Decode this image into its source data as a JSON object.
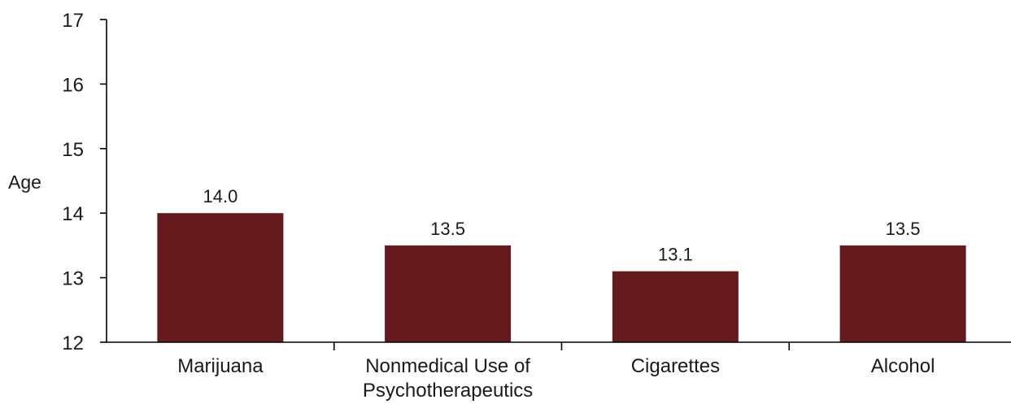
{
  "chart_data": {
    "type": "bar",
    "title": "",
    "xlabel": "",
    "ylabel": "Age",
    "ylim": [
      12,
      17
    ],
    "yticks": [
      12,
      13,
      14,
      15,
      16,
      17
    ],
    "grid": false,
    "categories": [
      [
        "Marijuana"
      ],
      [
        "Nonmedical Use of",
        "Psychotherapeutics"
      ],
      [
        "Cigarettes"
      ],
      [
        "Alcohol"
      ]
    ],
    "values": [
      14.0,
      13.5,
      13.1,
      13.5
    ],
    "data_labels": [
      "14.0",
      "13.5",
      "13.1",
      "13.5"
    ],
    "bar_color": "#651a1e"
  }
}
